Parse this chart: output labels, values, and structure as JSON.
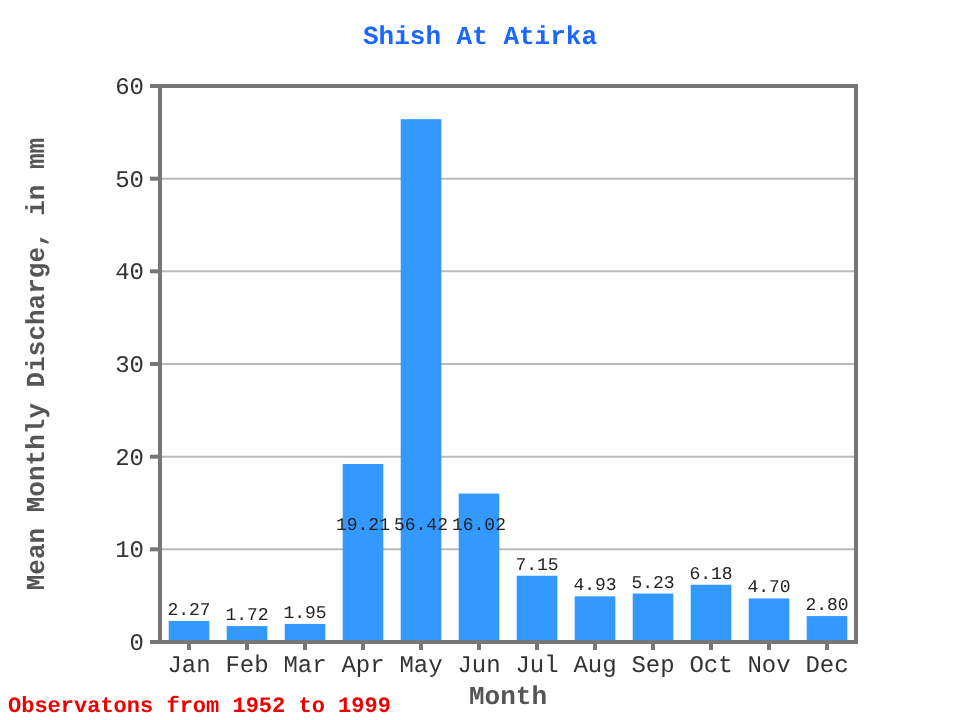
{
  "chart_data": {
    "type": "bar",
    "title": "Shish At Atirka",
    "xlabel": "Month",
    "ylabel": "Mean Monthly Discharge, in mm",
    "categories": [
      "Jan",
      "Feb",
      "Mar",
      "Apr",
      "May",
      "Jun",
      "Jul",
      "Aug",
      "Sep",
      "Oct",
      "Nov",
      "Dec"
    ],
    "values": [
      2.27,
      1.72,
      1.95,
      19.21,
      56.42,
      16.02,
      7.15,
      4.93,
      5.23,
      6.18,
      4.7,
      2.8
    ],
    "value_labels": [
      "2.27",
      "1.72",
      "1.95",
      "19.21",
      "56.42",
      "16.02",
      "7.15",
      "4.93",
      "5.23",
      "6.18",
      "4.70",
      "2.80"
    ],
    "color": "#3399ff",
    "ylim": [
      0,
      60
    ],
    "yticks": [
      0,
      10,
      20,
      30,
      40,
      50,
      60
    ],
    "grid": "y",
    "annotations": [
      "Observatons from 1952 to 1999"
    ]
  }
}
